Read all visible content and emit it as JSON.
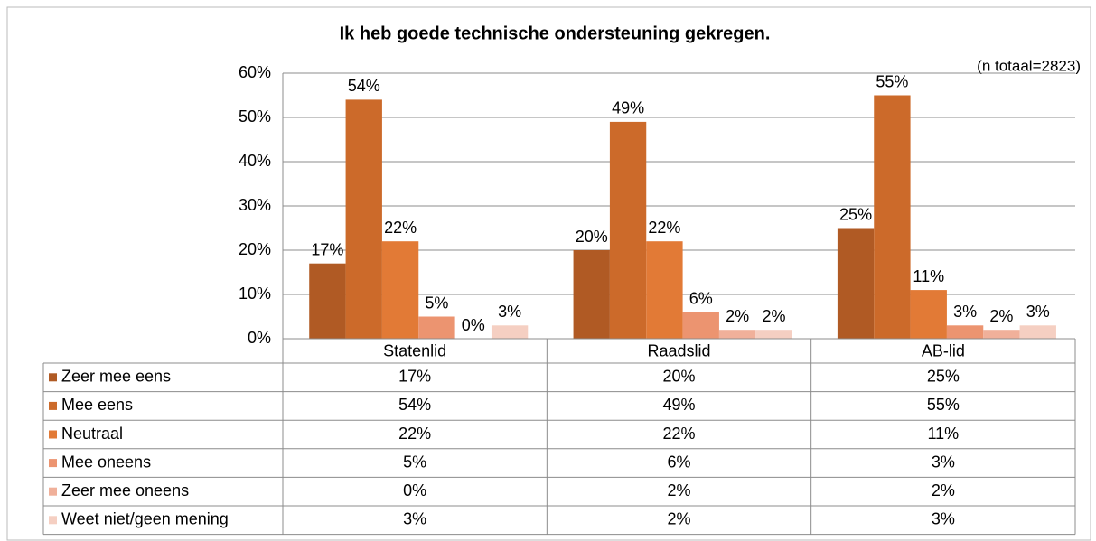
{
  "chart_data": {
    "type": "bar",
    "title": "Ik heb goede technische ondersteuning gekregen.",
    "annotation": "(n totaal=2823)",
    "categories": [
      "Statenlid",
      "Raadslid",
      "AB-lid"
    ],
    "series": [
      {
        "name": "Zeer mee eens",
        "color": "#b05a24",
        "values": [
          17,
          20,
          25
        ],
        "value_labels": [
          "17%",
          "20%",
          "25%"
        ]
      },
      {
        "name": "Mee eens",
        "color": "#cc6a2a",
        "values": [
          54,
          49,
          55
        ],
        "value_labels": [
          "54%",
          "49%",
          "55%"
        ]
      },
      {
        "name": "Neutraal",
        "color": "#e27a36",
        "values": [
          22,
          22,
          11
        ],
        "value_labels": [
          "22%",
          "22%",
          "11%"
        ]
      },
      {
        "name": "Mee oneens",
        "color": "#ec9470",
        "values": [
          5,
          6,
          3
        ],
        "value_labels": [
          "5%",
          "6%",
          "3%"
        ]
      },
      {
        "name": "Zeer mee oneens",
        "color": "#f0b09a",
        "values": [
          0,
          2,
          2
        ],
        "value_labels": [
          "0%",
          "2%",
          "2%"
        ]
      },
      {
        "name": "Weet niet/geen mening",
        "color": "#f5cfc2",
        "values": [
          3,
          2,
          3
        ],
        "value_labels": [
          "3%",
          "2%",
          "3%"
        ]
      }
    ],
    "ylim": [
      0,
      60
    ],
    "yticks": [
      {
        "value": 0,
        "label": "0%"
      },
      {
        "value": 10,
        "label": "10%"
      },
      {
        "value": 20,
        "label": "20%"
      },
      {
        "value": 30,
        "label": "30%"
      },
      {
        "value": 40,
        "label": "40%"
      },
      {
        "value": 50,
        "label": "50%"
      },
      {
        "value": 60,
        "label": "60%"
      }
    ],
    "grid": true,
    "data_table": true
  }
}
